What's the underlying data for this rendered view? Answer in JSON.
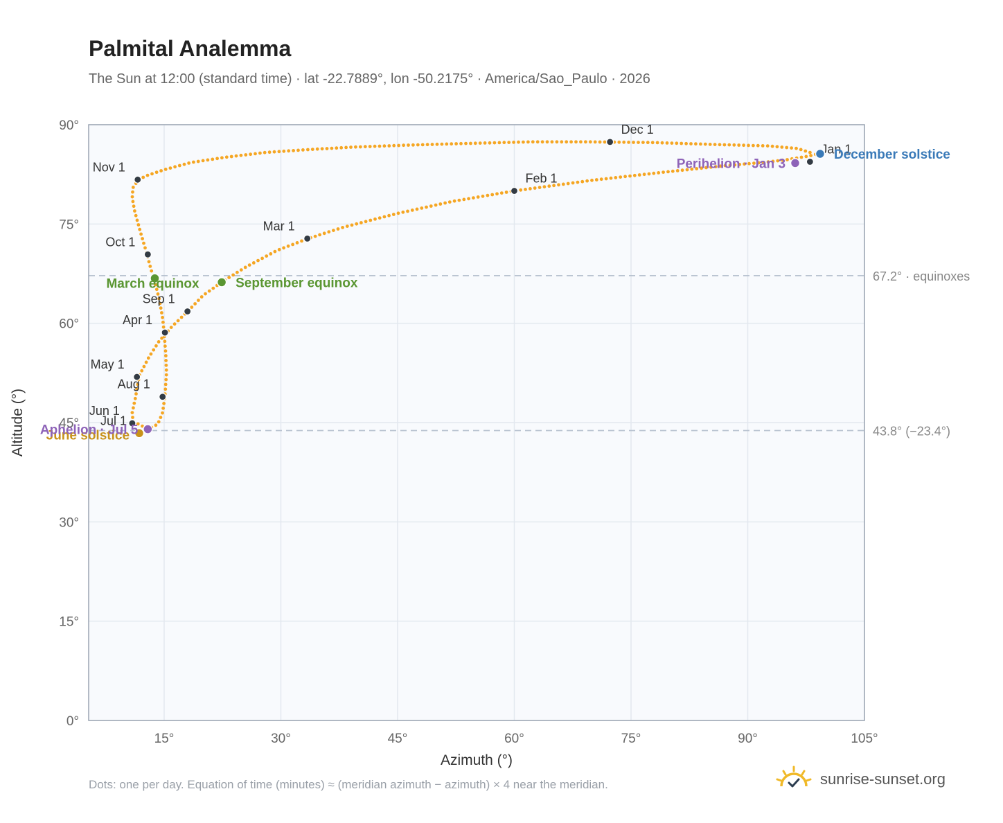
{
  "title": "Palmital Analemma",
  "subtitle": "The Sun at 12:00 (standard time) · lat -22.7889°, lon -50.2175° · America/Sao_Paulo · 2026",
  "footnote": "Dots: one per day. Equation of time (minutes) ≈ (meridian azimuth − azimuth) × 4 near the meridian.",
  "brand": {
    "name": "sunrise-sunset.org",
    "icon": "sun-logo-icon"
  },
  "colors": {
    "curve": "#f5a623",
    "month_marker": "#333b44",
    "equinox": "#5a9632",
    "june_solstice": "#c8921a",
    "december_solstice": "#3a7ab8",
    "apsis": "#8e63b8",
    "reference_line": "#b8c2d0",
    "plot_background": "#f8fafd",
    "grid": "#e3e8ef"
  },
  "chart_data": {
    "type": "scatter",
    "title": "Palmital Analemma",
    "xlabel": "Azimuth (°)",
    "ylabel": "Altitude (°)",
    "xlim": [
      5.3,
      105
    ],
    "ylim": [
      0,
      90
    ],
    "xticks": [
      15,
      30,
      45,
      60,
      75,
      90,
      105
    ],
    "yticks": [
      0,
      15,
      30,
      45,
      60,
      75,
      90
    ],
    "grid": true,
    "tick_suffix": "°",
    "reference_lines": [
      {
        "y": 67.2,
        "label": "67.2° · equinoxes"
      },
      {
        "y": 43.8,
        "label": "43.8° (−23.4°)"
      }
    ],
    "analemma_path": [
      [
        98.0,
        85.8
      ],
      [
        96.4,
        86.4
      ],
      [
        92.5,
        86.8
      ],
      [
        86.0,
        87.0
      ],
      [
        78.0,
        87.3
      ],
      [
        70.0,
        87.4
      ],
      [
        62.0,
        87.4
      ],
      [
        55.0,
        87.2
      ],
      [
        46.0,
        86.9
      ],
      [
        39.0,
        86.6
      ],
      [
        33.0,
        86.2
      ],
      [
        28.0,
        85.8
      ],
      [
        23.0,
        85.1
      ],
      [
        18.5,
        84.3
      ],
      [
        15.0,
        83.2
      ],
      [
        12.5,
        82.2
      ],
      [
        11.6,
        81.5
      ],
      [
        11.0,
        80.5
      ],
      [
        10.9,
        79.0
      ],
      [
        11.2,
        77.0
      ],
      [
        11.9,
        74.0
      ],
      [
        12.8,
        70.4
      ],
      [
        13.3,
        68.2
      ],
      [
        13.8,
        66.3
      ],
      [
        14.4,
        63.5
      ],
      [
        14.8,
        60.8
      ],
      [
        15.0,
        58.5
      ],
      [
        15.2,
        55.5
      ],
      [
        15.3,
        52.5
      ],
      [
        15.1,
        49.0
      ],
      [
        14.8,
        46.5
      ],
      [
        14.2,
        44.8
      ],
      [
        13.5,
        44.3
      ],
      [
        12.8,
        44.2
      ],
      [
        12.3,
        44.4
      ],
      [
        11.5,
        44.9
      ],
      [
        11.0,
        45.2
      ],
      [
        10.9,
        46.5
      ],
      [
        11.3,
        48.7
      ],
      [
        11.8,
        52.1
      ],
      [
        13.0,
        54.8
      ],
      [
        14.3,
        57.2
      ],
      [
        16.0,
        59.5
      ],
      [
        18.2,
        62.0
      ],
      [
        20.0,
        64.2
      ],
      [
        22.5,
        66.3
      ],
      [
        25.5,
        68.5
      ],
      [
        29.5,
        71.0
      ],
      [
        33.5,
        72.8
      ],
      [
        38.0,
        74.5
      ],
      [
        45.0,
        76.6
      ],
      [
        52.0,
        78.4
      ],
      [
        60.0,
        80.0
      ],
      [
        70.0,
        81.6
      ],
      [
        79.0,
        82.8
      ],
      [
        87.0,
        83.8
      ],
      [
        92.0,
        84.3
      ],
      [
        95.0,
        84.7
      ],
      [
        98.0,
        85.3
      ],
      [
        99.3,
        85.7
      ]
    ],
    "month_markers": [
      {
        "label": "Jan 1",
        "x": 98.0,
        "y": 84.4
      },
      {
        "label": "Feb 1",
        "x": 60.0,
        "y": 80.0
      },
      {
        "label": "Mar 1",
        "x": 33.4,
        "y": 72.8
      },
      {
        "label": "Apr 1",
        "x": 15.1,
        "y": 58.6
      },
      {
        "label": "May 1",
        "x": 11.5,
        "y": 51.9
      },
      {
        "label": "Jun 1",
        "x": 10.9,
        "y": 44.9
      },
      {
        "label": "Jul 1",
        "x": 11.8,
        "y": 43.4
      },
      {
        "label": "Aug 1",
        "x": 14.8,
        "y": 48.9
      },
      {
        "label": "Sep 1",
        "x": 18.0,
        "y": 61.8
      },
      {
        "label": "Oct 1",
        "x": 12.9,
        "y": 70.4
      },
      {
        "label": "Nov 1",
        "x": 11.6,
        "y": 81.7
      },
      {
        "label": "Dec 1",
        "x": 72.3,
        "y": 87.4
      }
    ],
    "events": [
      {
        "label": "March equinox",
        "x": 13.8,
        "y": 66.8,
        "color_key": "equinox"
      },
      {
        "label": "September equinox",
        "x": 22.4,
        "y": 66.2,
        "color_key": "equinox"
      },
      {
        "label": "June solstice",
        "x": 11.8,
        "y": 43.4,
        "color_key": "june_solstice"
      },
      {
        "label": "December solstice",
        "x": 99.3,
        "y": 85.6,
        "color_key": "december_solstice"
      },
      {
        "label": "Perihelion · Jan 3",
        "x": 96.1,
        "y": 84.2,
        "color_key": "apsis"
      },
      {
        "label": "Aphelion · Jul 5",
        "x": 12.9,
        "y": 44.0,
        "color_key": "apsis"
      }
    ]
  }
}
